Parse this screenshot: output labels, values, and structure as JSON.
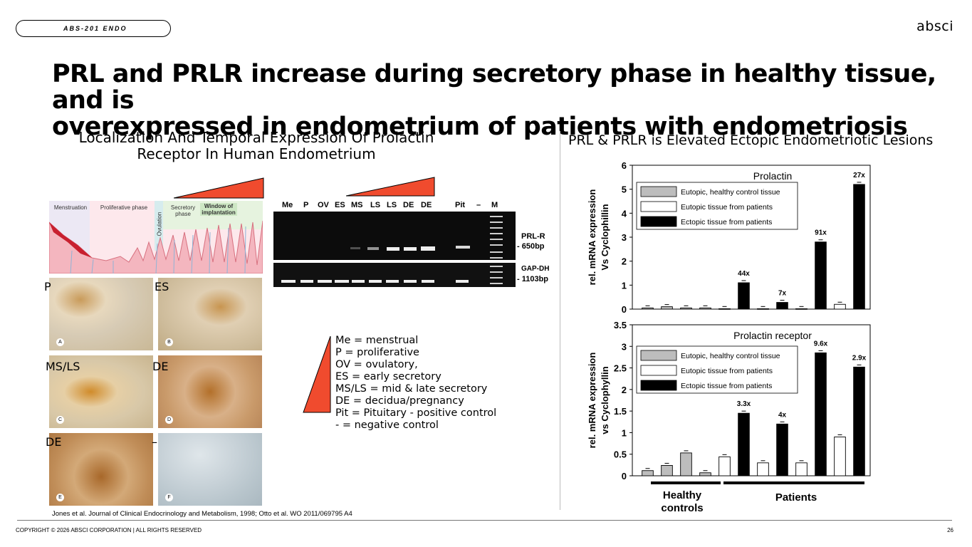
{
  "header": {
    "tag": "ABS-201 ENDO",
    "logo": "absci"
  },
  "title": {
    "line1": "PRL and PRLR increase during secretory phase in healthy tissue, and is",
    "line2": "overexpressed in endometrium of patients with endometriosis"
  },
  "left": {
    "heading_line1": "Localization And Temporal Expression Of Prolactin",
    "heading_line2": "Receptor In Human Endometrium",
    "phases": [
      "Menstruation",
      "Proliferative phase",
      "Ovulation",
      "Secretory phase",
      "Window of implantation"
    ],
    "panel_labels": [
      "P",
      "ES",
      "MS/LS",
      "DE",
      "DE",
      "–"
    ],
    "panel_tags": [
      "A",
      "B",
      "C",
      "D",
      "E",
      "F"
    ],
    "gel_lanes": [
      "Me",
      "P",
      "OV",
      "ES",
      "MS",
      "LS",
      "LS",
      "DE",
      "DE",
      "Pit",
      "–",
      "M"
    ],
    "gel_right_labels": [
      "PRL-R",
      "- 650bp",
      "GAP-DH",
      "- 1103bp"
    ],
    "legend": [
      "Me = menstrual",
      "P = proliferative",
      "OV = ovulatory,",
      "ES =  early secretory",
      "MS/LS = mid & late secretory",
      "DE = decidua/pregnancy",
      "Pit = Pituitary - positive control",
      "- = negative control"
    ]
  },
  "right": {
    "heading": "PRL & PRLR is Elevated Ectopic Endometriotic Lesions",
    "group_labels": [
      "Healthy",
      "controls",
      "Patients"
    ],
    "colors": {
      "healthy": "#bdbdbd",
      "eutopic": "#ffffff",
      "ectopic": "#000000"
    }
  },
  "chart_data": [
    {
      "type": "bar",
      "title": "Prolactin",
      "ylabel_line1": "rel. mRNA expression",
      "ylabel_line2": "Vs Cyclophillin",
      "ylim": [
        0,
        6
      ],
      "yticks": [
        "0",
        "1",
        "2",
        "3",
        "4",
        "5",
        "6"
      ],
      "legend": [
        "Eutopic, healthy control tissue",
        "Eutopic tissue from patients",
        "Ectopic tissue from patients"
      ],
      "bars": [
        {
          "series": "healthy",
          "value": 0.05
        },
        {
          "series": "healthy",
          "value": 0.1
        },
        {
          "series": "healthy",
          "value": 0.05
        },
        {
          "series": "healthy",
          "value": 0.05
        },
        {
          "series": "eutopic",
          "value": 0.02
        },
        {
          "series": "ectopic",
          "value": 1.1,
          "label": "44x"
        },
        {
          "series": "eutopic",
          "value": 0.02
        },
        {
          "series": "ectopic",
          "value": 0.28,
          "label": "7x"
        },
        {
          "series": "eutopic",
          "value": 0.02
        },
        {
          "series": "ectopic",
          "value": 2.8,
          "label": "91x"
        },
        {
          "series": "eutopic",
          "value": 0.2
        },
        {
          "series": "ectopic",
          "value": 5.2,
          "label": "27x"
        }
      ]
    },
    {
      "type": "bar",
      "title": "Prolactin receptor",
      "ylabel_line1": "rel. mRNA expression",
      "ylabel_line2": "vs Cyclophyllin",
      "ylim": [
        0,
        3.5
      ],
      "yticks": [
        "0",
        "0.5",
        "1",
        "1.5",
        "2",
        "2.5",
        "3",
        "3.5"
      ],
      "legend": [
        "Eutopic, healthy control tissue",
        "Eutopic tissue from patients",
        "Ectopic tissue from patients"
      ],
      "bars": [
        {
          "series": "healthy",
          "value": 0.12
        },
        {
          "series": "healthy",
          "value": 0.24
        },
        {
          "series": "healthy",
          "value": 0.53
        },
        {
          "series": "healthy",
          "value": 0.07
        },
        {
          "series": "eutopic",
          "value": 0.44
        },
        {
          "series": "ectopic",
          "value": 1.45,
          "label": "3.3x"
        },
        {
          "series": "eutopic",
          "value": 0.3
        },
        {
          "series": "ectopic",
          "value": 1.2,
          "label": "4x"
        },
        {
          "series": "eutopic",
          "value": 0.3
        },
        {
          "series": "ectopic",
          "value": 2.85,
          "label": "9.6x"
        },
        {
          "series": "eutopic",
          "value": 0.9
        },
        {
          "series": "ectopic",
          "value": 2.52,
          "label": "2.9x"
        }
      ]
    }
  ],
  "footer": {
    "citation": "Jones et al. Journal of Clinical Endocrinology and Metabolism, 1998; Otto et al. WO 2011/069795 A4",
    "copyright": "COPYRIGHT © 2026 ABSCI CORPORATION | ALL RIGHTS RESERVED",
    "page": "26"
  }
}
